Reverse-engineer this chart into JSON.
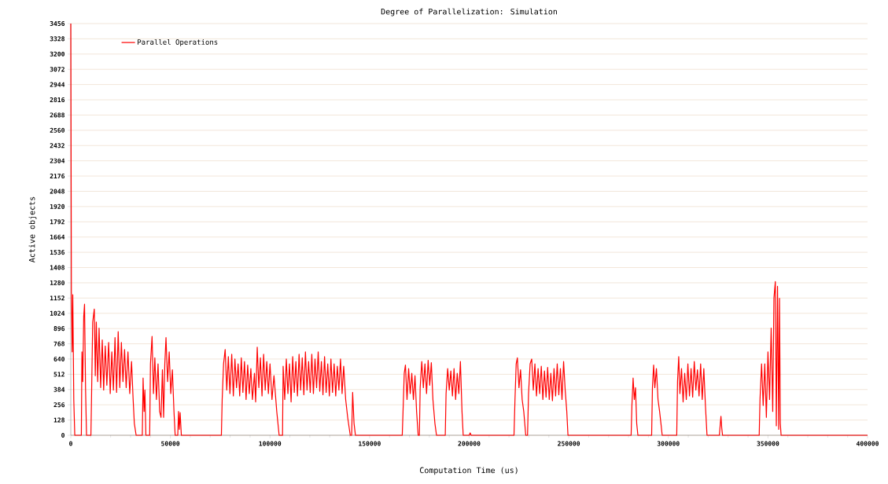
{
  "chart_data": {
    "type": "line",
    "title": "Degree of Parallelization: Simulation",
    "xlabel": "Computation Time (us)",
    "ylabel": "Active objects",
    "xlim": [
      0,
      400000
    ],
    "xticks": [
      0,
      50000,
      100000,
      150000,
      200000,
      250000,
      300000,
      350000,
      400000
    ],
    "ylim": [
      0,
      3456
    ],
    "yticks": [
      0,
      128,
      256,
      384,
      512,
      640,
      768,
      896,
      1024,
      1152,
      1280,
      1408,
      1536,
      1664,
      1792,
      1920,
      2048,
      2176,
      2304,
      2432,
      2560,
      2688,
      2816,
      2944,
      3072,
      3200,
      3328,
      3456
    ],
    "grid": "y",
    "legend": "top left",
    "marker": "none",
    "line_style": "solid",
    "series": [
      {
        "name": "Parallel Operations",
        "color": "#ff0000",
        "x": [
          0,
          300,
          700,
          1000,
          1500,
          2000,
          5300,
          5600,
          6000,
          6500,
          6900,
          7400,
          7900,
          10100,
          10400,
          11000,
          11800,
          12300,
          12800,
          13500,
          14200,
          15000,
          15800,
          16500,
          17300,
          18100,
          19000,
          19800,
          20600,
          21400,
          22200,
          23000,
          23800,
          24600,
          25400,
          26200,
          27000,
          27800,
          28700,
          29600,
          30500,
          31300,
          31900,
          32800,
          35900,
          36300,
          36800,
          37200,
          37700,
          39600,
          40000,
          40800,
          41500,
          42200,
          43000,
          43800,
          44600,
          45300,
          46000,
          46600,
          47200,
          47800,
          48600,
          49400,
          50200,
          51000,
          51800,
          52400,
          53700,
          54100,
          54500,
          54900,
          55500,
          75600,
          76000,
          76700,
          77500,
          78300,
          79100,
          79900,
          80800,
          81600,
          82400,
          83200,
          84000,
          84800,
          85600,
          86400,
          87200,
          88000,
          88800,
          89600,
          90400,
          91200,
          92200,
          92800,
          93600,
          94400,
          95200,
          96000,
          96800,
          97600,
          98400,
          99200,
          100000,
          101000,
          102000,
          103400,
          104600,
          106300,
          106600,
          107400,
          108200,
          109000,
          109800,
          110600,
          111400,
          112200,
          113000,
          113800,
          114600,
          115400,
          116200,
          117000,
          117800,
          118600,
          119400,
          120200,
          121000,
          121800,
          122600,
          123400,
          124200,
          125000,
          125800,
          126600,
          127400,
          128200,
          129000,
          129800,
          130600,
          131400,
          132200,
          133000,
          133800,
          134600,
          135400,
          136200,
          137000,
          138000,
          139000,
          140300,
          141000,
          141500,
          142200,
          142900,
          166400,
          166800,
          167400,
          168000,
          168800,
          169600,
          170400,
          171200,
          172000,
          172800,
          173600,
          174400,
          175000,
          175400,
          176200,
          177000,
          177800,
          178600,
          179400,
          180200,
          181000,
          181800,
          182800,
          183600,
          188000,
          188400,
          189200,
          190000,
          190800,
          191600,
          192400,
          193200,
          194000,
          194800,
          195600,
          196400,
          197000,
          200000,
          200500,
          201000,
          222500,
          223000,
          223600,
          224200,
          225000,
          225800,
          226600,
          227400,
          228400,
          229300,
          229800,
          230600,
          231400,
          232200,
          233000,
          233800,
          234600,
          235400,
          236200,
          237000,
          237800,
          238600,
          239400,
          240200,
          241000,
          241800,
          242600,
          243400,
          244200,
          245000,
          245800,
          246600,
          247400,
          248200,
          249000,
          249600,
          281300,
          281700,
          282300,
          282900,
          283500,
          284100,
          284700,
          291600,
          292000,
          292600,
          293200,
          294000,
          294800,
          295600,
          296400,
          296900,
          304200,
          304600,
          305200,
          305800,
          306600,
          307400,
          308200,
          309000,
          309800,
          310600,
          311400,
          312200,
          313000,
          313800,
          314600,
          315400,
          316200,
          317000,
          317800,
          318600,
          319400,
          325600,
          326000,
          326400,
          326800,
          327200,
          345600,
          346000,
          346800,
          347600,
          348400,
          349200,
          350000,
          350800,
          351600,
          352400,
          353000,
          353700,
          354200,
          354800,
          355400,
          355800,
          356200,
          356600,
          400000
        ],
        "values": [
          3456,
          1200,
          700,
          1180,
          300,
          0,
          0,
          700,
          450,
          1000,
          1100,
          400,
          0,
          0,
          300,
          950,
          1060,
          500,
          950,
          450,
          900,
          400,
          800,
          380,
          750,
          420,
          780,
          350,
          700,
          380,
          820,
          360,
          870,
          400,
          780,
          450,
          720,
          400,
          700,
          350,
          620,
          300,
          100,
          0,
          0,
          480,
          200,
          380,
          0,
          0,
          600,
          830,
          350,
          650,
          300,
          600,
          200,
          150,
          550,
          150,
          600,
          820,
          450,
          700,
          350,
          550,
          200,
          0,
          0,
          200,
          50,
          190,
          0,
          0,
          300,
          600,
          720,
          380,
          660,
          350,
          680,
          330,
          640,
          400,
          600,
          330,
          650,
          360,
          620,
          300,
          590,
          350,
          560,
          300,
          520,
          280,
          740,
          400,
          650,
          330,
          680,
          380,
          620,
          350,
          600,
          300,
          500,
          200,
          0,
          0,
          580,
          300,
          640,
          350,
          600,
          280,
          660,
          360,
          620,
          330,
          680,
          380,
          650,
          340,
          700,
          380,
          620,
          360,
          680,
          350,
          640,
          400,
          700,
          370,
          620,
          340,
          660,
          360,
          600,
          330,
          640,
          360,
          600,
          330,
          580,
          380,
          640,
          350,
          580,
          300,
          150,
          0,
          0,
          360,
          100,
          0,
          0,
          200,
          520,
          590,
          300,
          560,
          350,
          520,
          300,
          500,
          200,
          0,
          0,
          400,
          620,
          400,
          600,
          350,
          630,
          420,
          610,
          300,
          100,
          0,
          0,
          350,
          560,
          380,
          540,
          330,
          560,
          300,
          520,
          350,
          620,
          200,
          0,
          0,
          20,
          0,
          0,
          300,
          600,
          650,
          400,
          550,
          300,
          200,
          0,
          0,
          350,
          600,
          640,
          380,
          600,
          330,
          560,
          350,
          580,
          300,
          540,
          320,
          570,
          300,
          520,
          290,
          560,
          330,
          600,
          340,
          560,
          300,
          620,
          380,
          200,
          0,
          0,
          250,
          480,
          300,
          400,
          100,
          0,
          0,
          400,
          590,
          400,
          560,
          300,
          200,
          80,
          0,
          0,
          450,
          660,
          350,
          560,
          280,
          520,
          300,
          600,
          330,
          560,
          320,
          620,
          380,
          550,
          330,
          600,
          300,
          560,
          250,
          0,
          0,
          80,
          160,
          60,
          0,
          0,
          300,
          600,
          250,
          600,
          150,
          700,
          300,
          900,
          200,
          1150,
          1290,
          80,
          1250,
          50,
          1150,
          100,
          0,
          0
        ]
      }
    ]
  }
}
